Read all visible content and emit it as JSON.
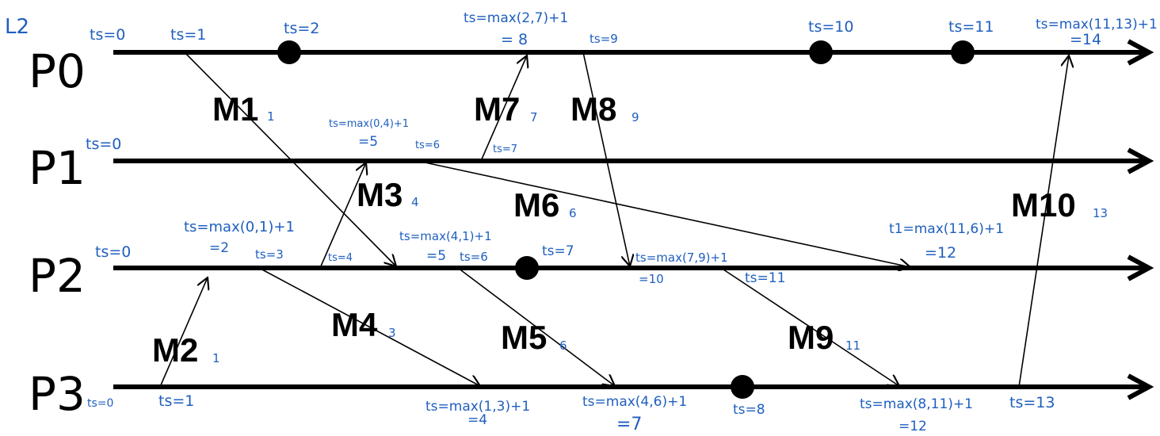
{
  "corner_mark": "L2",
  "colors": {
    "line": "#000000",
    "annotation": "#1f5fbf"
  },
  "processes": [
    {
      "id": "p0",
      "label": "P0"
    },
    {
      "id": "p1",
      "label": "P1"
    },
    {
      "id": "p2",
      "label": "P2"
    },
    {
      "id": "p3",
      "label": "P3"
    }
  ],
  "messages": [
    {
      "id": "m1",
      "label": "M1",
      "sub": "1"
    },
    {
      "id": "m2",
      "label": "M2",
      "sub": "1"
    },
    {
      "id": "m3",
      "label": "M3",
      "sub": "4"
    },
    {
      "id": "m4",
      "label": "M4",
      "sub": "3"
    },
    {
      "id": "m5",
      "label": "M5",
      "sub": "6"
    },
    {
      "id": "m6",
      "label": "M6",
      "sub": "6"
    },
    {
      "id": "m7",
      "label": "M7",
      "sub": "7"
    },
    {
      "id": "m8",
      "label": "M8",
      "sub": "9"
    },
    {
      "id": "m9",
      "label": "M9",
      "sub": "11"
    },
    {
      "id": "m10",
      "label": "M10",
      "sub": "13"
    }
  ],
  "annotations": {
    "p0_ts0": "ts=0",
    "p0_ts1": "ts=1",
    "p0_ts2": "ts=2",
    "p0_ts8a": "ts=max(2,7)+1",
    "p0_ts8b": "= 8",
    "p0_ts9": "ts=9",
    "p0_ts10": "ts=10",
    "p0_ts11": "ts=11",
    "p0_ts14a": "ts=max(11,13)+1",
    "p0_ts14b": "=14",
    "p1_ts0": "ts=0",
    "p1_ts5a": "ts=max(0,4)+1",
    "p1_ts5b": "=5",
    "p1_ts6": "ts=6",
    "p1_ts7": "ts=7",
    "p2_ts0": "ts=0",
    "p2_ts2a": "ts=max(0,1)+1",
    "p2_ts2b": "=2",
    "p2_ts3": "ts=3",
    "p2_ts4": "ts=4",
    "p2_ts5a": "ts=max(4,1)+1",
    "p2_ts5b": "=5",
    "p2_ts6": "ts=6",
    "p2_ts7": "ts=7",
    "p2_ts10a": "ts=max(7,9)+1",
    "p2_ts10b": "=10",
    "p2_ts11": "ts=11",
    "p2_ts12a": "t1=max(11,6)+1",
    "p2_ts12b": "=12",
    "p3_ts0": "ts=0",
    "p3_ts1": "ts=1",
    "p3_ts4a": "ts=max(1,3)+1",
    "p3_ts4b": "=4",
    "p3_ts7a": "ts=max(4,6)+1",
    "p3_ts7b": "=7",
    "p3_ts8": "ts=8",
    "p3_ts12a": "ts=max(8,11)+1",
    "p3_ts12b": "=12",
    "p3_ts13": "ts=13"
  }
}
